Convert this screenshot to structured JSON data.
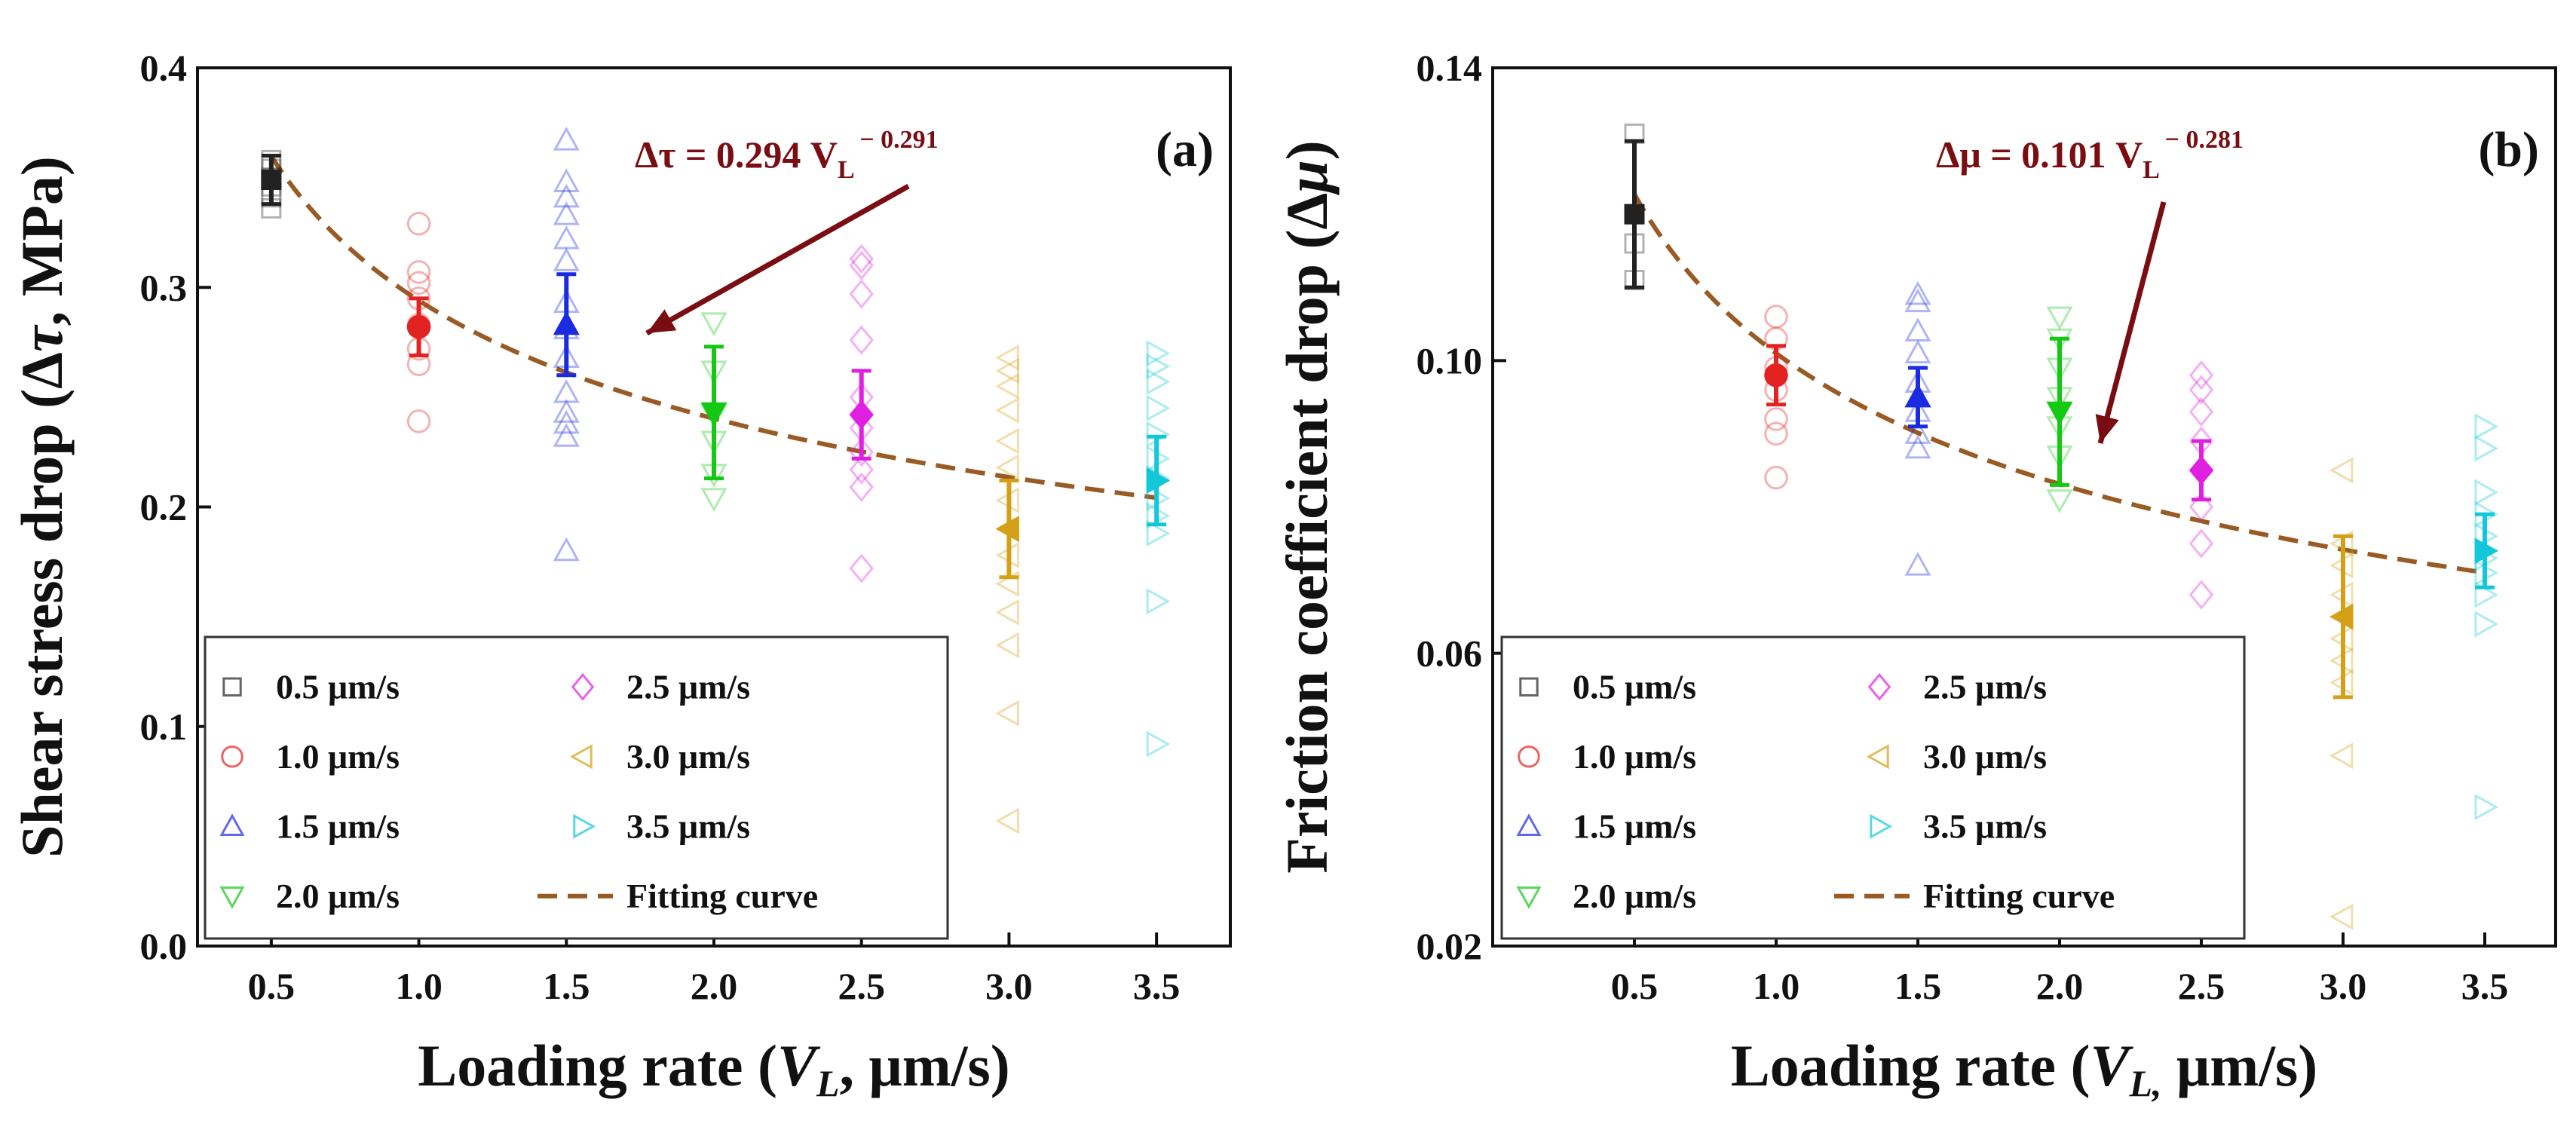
{
  "chart_data": [
    {
      "type": "scatter",
      "panel_label": "(a)",
      "xlabel": "Loading rate (V_L, μm/s)",
      "xlabel_main": "Loading rate (",
      "xlabel_var": "V",
      "xlabel_sub": "L",
      "xlabel_tail": ", μm/s)",
      "ylabel": "Shear stress drop (Δτ, MPa)",
      "ylabel_main": "Shear stress drop (Δ",
      "ylabel_var": "τ",
      "ylabel_tail": ", MPa)",
      "xlim": [
        0.25,
        3.75
      ],
      "ylim": [
        0.0,
        0.4
      ],
      "yticks": [
        0.0,
        0.1,
        0.2,
        0.3,
        0.4
      ],
      "ytick_labels": [
        "0.0",
        "0.1",
        "0.2",
        "0.3",
        "0.4"
      ],
      "xticks": [
        0.5,
        1.0,
        1.5,
        2.0,
        2.5,
        3.0,
        3.5
      ],
      "xtick_labels": [
        "0.5",
        "1.0",
        "1.5",
        "2.0",
        "2.5",
        "3.0",
        "3.5"
      ],
      "fit": {
        "a": 0.294,
        "b": -0.291,
        "label": "Δτ = 0.294 V",
        "sub": "L",
        "exp": " − 0.291"
      },
      "series": [
        {
          "name": "0.5 μm/s",
          "x": 0.5,
          "marker": "square",
          "color": "#222222",
          "points": [
            0.336,
            0.341,
            0.346,
            0.35,
            0.354,
            0.358
          ],
          "mean": 0.349,
          "err": 0.011
        },
        {
          "name": "1.0 μm/s",
          "x": 1.0,
          "marker": "circle",
          "color": "#e32222",
          "points": [
            0.239,
            0.265,
            0.272,
            0.283,
            0.295,
            0.302,
            0.307,
            0.329
          ],
          "mean": 0.282,
          "err": 0.013
        },
        {
          "name": "1.5 μm/s",
          "x": 1.5,
          "marker": "triangle-up",
          "color": "#1a2be0",
          "points": [
            0.18,
            0.232,
            0.238,
            0.243,
            0.252,
            0.268,
            0.281,
            0.293,
            0.312,
            0.322,
            0.333,
            0.341,
            0.348,
            0.367
          ],
          "mean": 0.283,
          "err": 0.023
        },
        {
          "name": "2.0 μm/s",
          "x": 2.0,
          "marker": "triangle-down",
          "color": "#14c814",
          "points": [
            0.204,
            0.215,
            0.23,
            0.242,
            0.262,
            0.284
          ],
          "mean": 0.243,
          "err": 0.03
        },
        {
          "name": "2.5 μm/s",
          "x": 2.5,
          "marker": "diamond",
          "color": "#e020e0",
          "points": [
            0.172,
            0.209,
            0.217,
            0.225,
            0.236,
            0.25,
            0.276,
            0.297,
            0.31,
            0.313
          ],
          "mean": 0.242,
          "err": 0.02
        },
        {
          "name": "3.0 μm/s",
          "x": 3.0,
          "marker": "triangle-left",
          "color": "#d4a017",
          "points": [
            0.057,
            0.106,
            0.137,
            0.152,
            0.165,
            0.178,
            0.19,
            0.203,
            0.218,
            0.23,
            0.244,
            0.255,
            0.262,
            0.268
          ],
          "mean": 0.19,
          "err": 0.022
        },
        {
          "name": "3.5 μm/s",
          "x": 3.5,
          "marker": "triangle-right",
          "color": "#12c8d8",
          "points": [
            0.092,
            0.157,
            0.188,
            0.196,
            0.204,
            0.213,
            0.222,
            0.233,
            0.245,
            0.257,
            0.264,
            0.27
          ],
          "mean": 0.212,
          "err": 0.02
        }
      ],
      "legend": [
        "0.5 μm/s",
        "2.5 μm/s",
        "1.0 μm/s",
        "3.0 μm/s",
        "1.5 μm/s",
        "3.5 μm/s",
        "2.0 μm/s",
        "Fitting curve"
      ]
    },
    {
      "type": "scatter",
      "panel_label": "(b)",
      "xlabel": "Loading rate (V_L, μm/s)",
      "xlabel_main": "Loading rate (",
      "xlabel_var": "V",
      "xlabel_sub": "L,",
      "xlabel_tail": " μm/s)",
      "ylabel": "Friction coefficient drop (Δμ)",
      "ylabel_main": "Friction coefficient  drop  (Δ",
      "ylabel_var": "μ",
      "ylabel_tail": ")",
      "xlim": [
        0.0,
        3.75
      ],
      "ylim": [
        0.02,
        0.14
      ],
      "yticks": [
        0.02,
        0.06,
        0.1,
        0.14
      ],
      "ytick_labels": [
        "0.02",
        "0.06",
        "0.10",
        "0.14"
      ],
      "xticks": [
        0.5,
        1.0,
        1.5,
        2.0,
        2.5,
        3.0,
        3.5
      ],
      "xtick_labels": [
        "0.5",
        "1.0",
        "1.5",
        "2.0",
        "2.5",
        "3.0",
        "3.5"
      ],
      "fit": {
        "a": 0.101,
        "b": -0.281,
        "label": "Δμ = 0.101 V",
        "sub": "L",
        "exp": " − 0.281"
      },
      "series": [
        {
          "name": "0.5 μm/s",
          "x": 0.5,
          "marker": "square",
          "color": "#222222",
          "points": [
            0.111,
            0.116,
            0.12,
            0.131
          ],
          "mean": 0.12,
          "err": 0.01
        },
        {
          "name": "1.0 μm/s",
          "x": 1.0,
          "marker": "circle",
          "color": "#e32222",
          "points": [
            0.084,
            0.09,
            0.092,
            0.096,
            0.099,
            0.103,
            0.106
          ],
          "mean": 0.098,
          "err": 0.004
        },
        {
          "name": "1.5 μm/s",
          "x": 1.5,
          "marker": "triangle-up",
          "color": "#1a2be0",
          "points": [
            0.072,
            0.088,
            0.09,
            0.093,
            0.095,
            0.097,
            0.101,
            0.104,
            0.108,
            0.109
          ],
          "mean": 0.095,
          "err": 0.004
        },
        {
          "name": "2.0 μm/s",
          "x": 2.0,
          "marker": "triangle-down",
          "color": "#14c814",
          "points": [
            0.081,
            0.087,
            0.091,
            0.095,
            0.099,
            0.103,
            0.106
          ],
          "mean": 0.093,
          "err": 0.01
        },
        {
          "name": "2.5 μm/s",
          "x": 2.5,
          "marker": "diamond",
          "color": "#e020e0",
          "points": [
            0.068,
            0.075,
            0.08,
            0.085,
            0.089,
            0.093,
            0.096,
            0.098
          ],
          "mean": 0.085,
          "err": 0.004
        },
        {
          "name": "3.0 μm/s",
          "x": 3.0,
          "marker": "triangle-left",
          "color": "#d4a017",
          "points": [
            0.024,
            0.046,
            0.056,
            0.059,
            0.062,
            0.065,
            0.068,
            0.072,
            0.075,
            0.085
          ],
          "mean": 0.065,
          "err": 0.011
        },
        {
          "name": "3.5 μm/s",
          "x": 3.5,
          "marker": "triangle-right",
          "color": "#12c8d8",
          "points": [
            0.039,
            0.064,
            0.068,
            0.071,
            0.073,
            0.076,
            0.079,
            0.082,
            0.088,
            0.091
          ],
          "mean": 0.074,
          "err": 0.005
        }
      ],
      "legend": [
        "0.5 μm/s",
        "2.5 μm/s",
        "1.0 μm/s",
        "3.0 μm/s",
        "1.5 μm/s",
        "3.5 μm/s",
        "2.0 μm/s",
        "Fitting curve"
      ]
    }
  ],
  "colors": {
    "fit_line": "#9a5a24",
    "annotation": "#7a0d12",
    "axis": "#111111"
  }
}
